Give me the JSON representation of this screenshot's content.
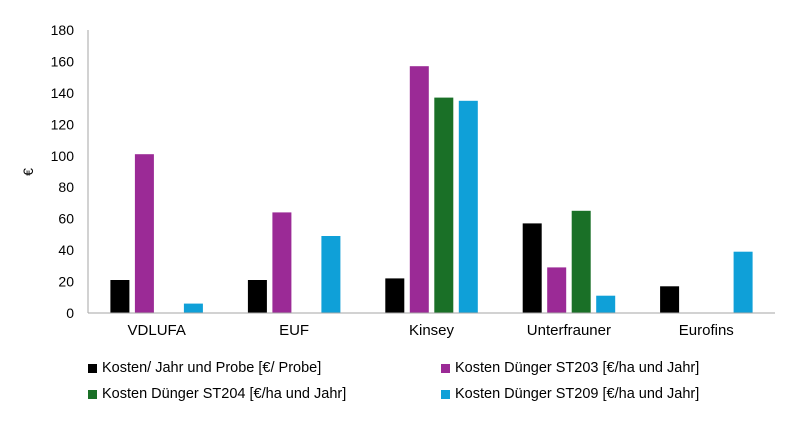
{
  "chart_data": {
    "type": "bar",
    "categories": [
      "VDLUFA",
      "EUF",
      "Kinsey",
      "Unterfrauner",
      "Eurofins"
    ],
    "series": [
      {
        "name": "Kosten/ Jahr und Probe [€/ Probe]",
        "color": "#000000",
        "values": [
          21,
          21,
          22,
          57,
          17
        ]
      },
      {
        "name": "Kosten Dünger ST203 [€/ha und Jahr]",
        "color": "#9b2a96",
        "values": [
          101,
          64,
          157,
          29,
          null
        ]
      },
      {
        "name": "Kosten Dünger ST204 [€/ha und Jahr]",
        "color": "#1a7027",
        "values": [
          null,
          null,
          137,
          65,
          null
        ]
      },
      {
        "name": "Kosten Dünger ST209 [€/ha und Jahr]",
        "color": "#0fa0d8",
        "values": [
          6,
          49,
          135,
          11,
          39
        ]
      }
    ],
    "ylabel": "€",
    "ylim": [
      0,
      180
    ],
    "yticks": [
      0,
      20,
      40,
      60,
      80,
      100,
      120,
      140,
      160,
      180
    ],
    "grid": false,
    "legend_position": "bottom"
  }
}
